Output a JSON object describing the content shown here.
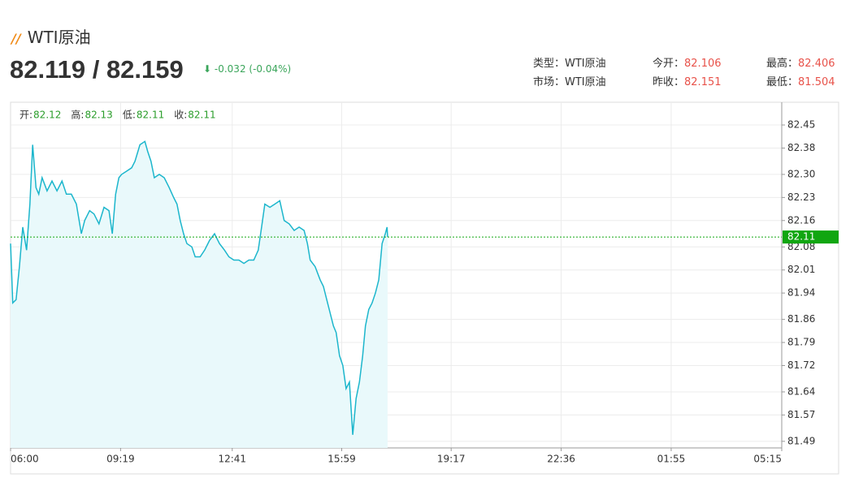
{
  "header": {
    "title": "WTI原油",
    "price": "82.119 / 82.159",
    "change": "-0.032 (-0.04%)",
    "info": [
      [
        {
          "label": "类型：",
          "value": "WTI原油"
        },
        {
          "label": "今开：",
          "value": 82.106
        },
        {
          "label": "最高：",
          "value": 82.406
        }
      ],
      [
        {
          "label": "市场：",
          "value": "WTI原油"
        },
        {
          "label": "昨收：",
          "value": 82.151
        },
        {
          "label": "最低：",
          "value": 81.504
        }
      ]
    ]
  },
  "chart_data": {
    "type": "line",
    "color": "#1cb6cc",
    "fill": "#e9f9fb",
    "ohlc": [
      {
        "label": "开:",
        "value": 82.12
      },
      {
        "label": "高:",
        "value": 82.13
      },
      {
        "label": "低:",
        "value": 82.11
      },
      {
        "label": "收:",
        "value": 82.11
      }
    ],
    "x": [
      0,
      4,
      10,
      16,
      22,
      29,
      35,
      40,
      46,
      51,
      57,
      66,
      75,
      84,
      93,
      101,
      110,
      119,
      128,
      134,
      143,
      151,
      160,
      169,
      178,
      184,
      190,
      196,
      201,
      210,
      219,
      225,
      234,
      243,
      248,
      254,
      260,
      269,
      278,
      287,
      295,
      301,
      307,
      313,
      319,
      328,
      334,
      343,
      351,
      360,
      369,
      378,
      387,
      395,
      404,
      413,
      422,
      431,
      440,
      448,
      454,
      460,
      469,
      478,
      487,
      495,
      504,
      513,
      522,
      531,
      537,
      542,
      551,
      560,
      566,
      572,
      578,
      584,
      589,
      595,
      601,
      607,
      613,
      619,
      625,
      631,
      637,
      642,
      648,
      654,
      660,
      666,
      672,
      678,
      681,
      682
    ],
    "values": [
      82.09,
      81.91,
      81.92,
      82.02,
      82.14,
      82.07,
      82.21,
      82.39,
      82.26,
      82.24,
      82.29,
      82.25,
      82.28,
      82.25,
      82.28,
      82.24,
      82.24,
      82.21,
      82.12,
      82.16,
      82.19,
      82.18,
      82.15,
      82.2,
      82.19,
      82.12,
      82.24,
      82.29,
      82.3,
      82.31,
      82.32,
      82.34,
      82.39,
      82.4,
      82.37,
      82.34,
      82.29,
      82.3,
      82.29,
      82.26,
      82.23,
      82.21,
      82.16,
      82.12,
      82.09,
      82.08,
      82.05,
      82.05,
      82.07,
      82.1,
      82.12,
      82.09,
      82.07,
      82.05,
      82.04,
      82.04,
      82.03,
      82.04,
      82.04,
      82.07,
      82.14,
      82.21,
      82.2,
      82.21,
      82.22,
      82.16,
      82.15,
      82.13,
      82.14,
      82.13,
      82.09,
      82.04,
      82.02,
      81.98,
      81.96,
      81.92,
      81.88,
      81.84,
      81.82,
      81.75,
      81.72,
      81.65,
      81.67,
      81.51,
      81.62,
      81.67,
      81.75,
      81.84,
      81.89,
      81.91,
      81.94,
      81.98,
      82.09,
      82.12,
      82.14,
      82.11
    ],
    "last_price": 82.11,
    "last_color": "#11a611",
    "xlim": [
      0,
      1395
    ],
    "xticks": [
      {
        "value": 0,
        "label": "06:00"
      },
      {
        "value": 199,
        "label": "09:19"
      },
      {
        "value": 401,
        "label": "12:41"
      },
      {
        "value": 599,
        "label": "15:59"
      },
      {
        "value": 797,
        "label": "19:17"
      },
      {
        "value": 996,
        "label": "22:36"
      },
      {
        "value": 1195,
        "label": "01:55"
      },
      {
        "value": 1395,
        "label": "05:15"
      }
    ],
    "ylim": [
      81.47,
      82.519
    ],
    "yticks": [
      82.45,
      82.38,
      {
        "value": 82.3,
        "label": "82.30"
      },
      82.23,
      82.16,
      82.08,
      82.01,
      81.94,
      81.86,
      81.79,
      81.72,
      81.64,
      81.57,
      81.49
    ],
    "grid": true
  }
}
